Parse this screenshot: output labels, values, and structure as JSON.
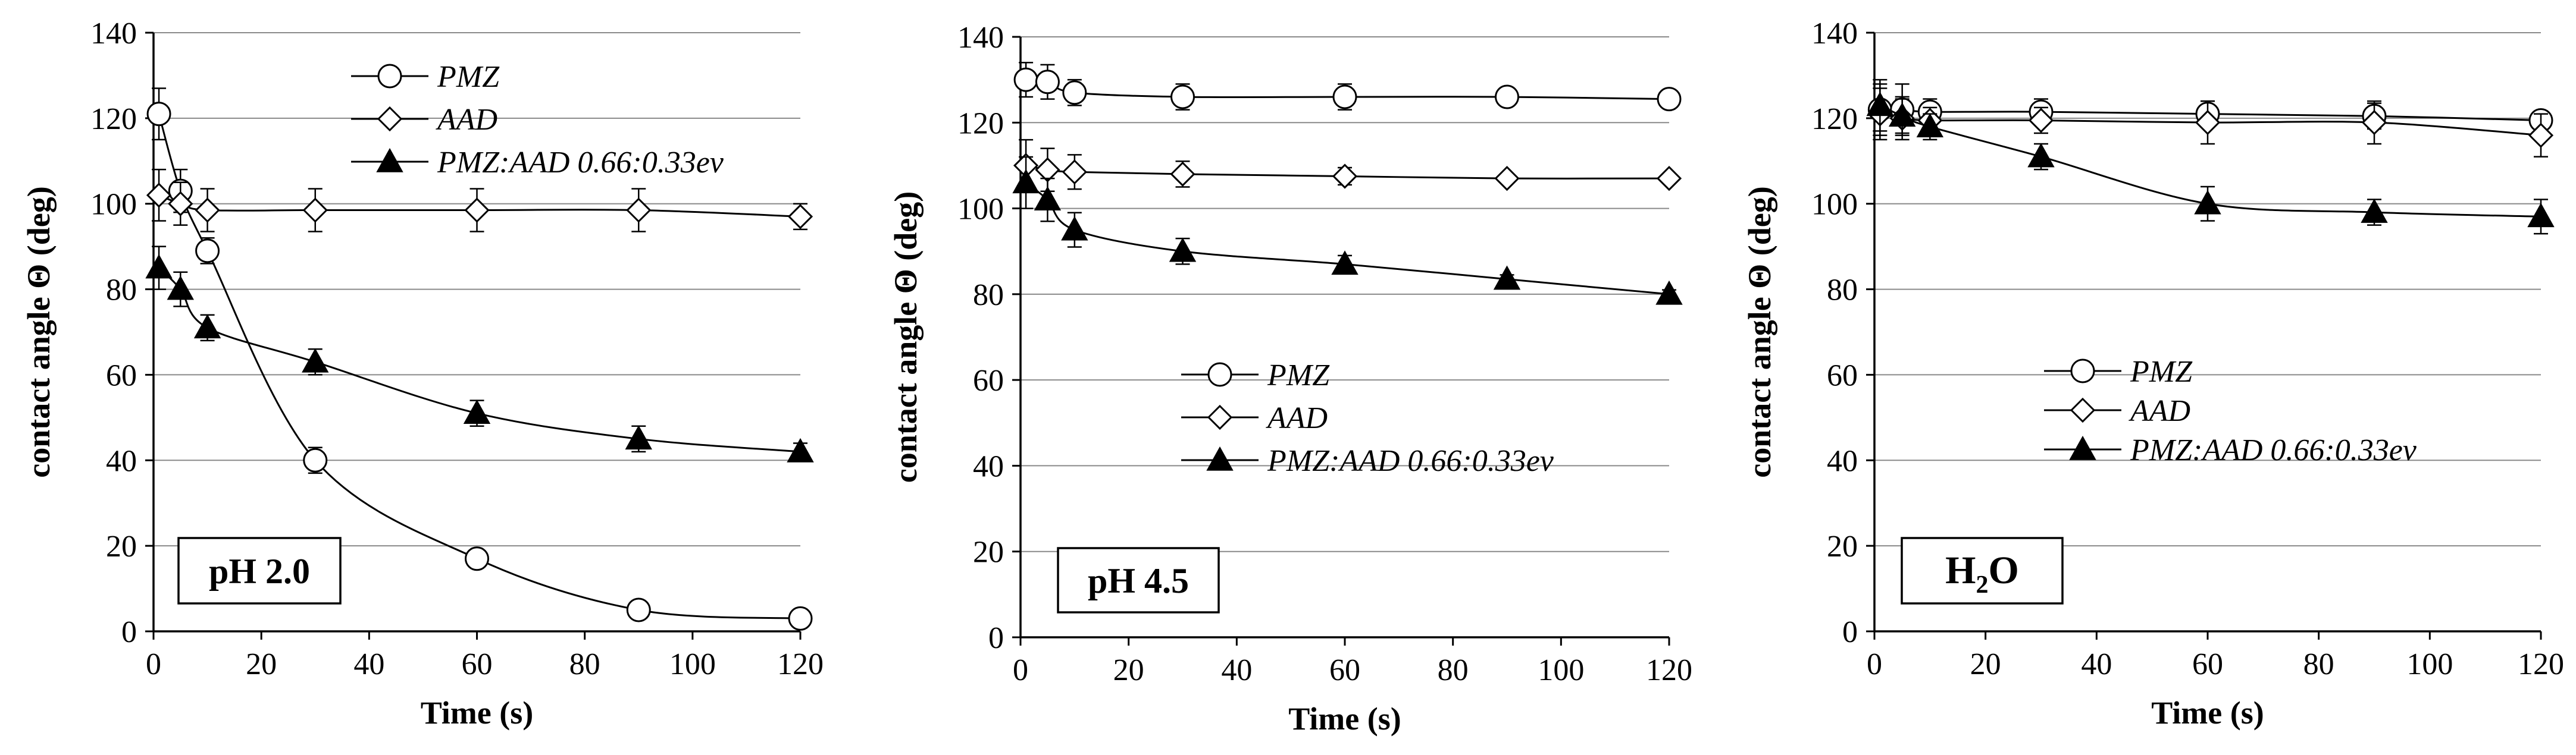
{
  "chart_data": [
    {
      "type": "line",
      "label": "pH 2.0",
      "xlabel": "Time (s)",
      "ylabel": "contact angle Θ (deg)",
      "xlim": [
        0,
        120
      ],
      "ylim": [
        0,
        140
      ],
      "xticks": [
        "0",
        "20",
        "40",
        "60",
        "80",
        "100",
        "120"
      ],
      "yticks": [
        "0",
        "20",
        "40",
        "60",
        "80",
        "100",
        "120",
        "140"
      ],
      "series": [
        {
          "name": "PMZ",
          "marker": "circle",
          "x": [
            1,
            5,
            10,
            30,
            60,
            90,
            120
          ],
          "y": [
            121,
            103,
            89,
            40,
            17,
            5,
            3
          ],
          "err": [
            6,
            5,
            3,
            3,
            2,
            1,
            1
          ]
        },
        {
          "name": "AAD",
          "marker": "diamond",
          "x": [
            1,
            5,
            10,
            30,
            60,
            90,
            120
          ],
          "y": [
            102,
            100,
            98.5,
            98.5,
            98.5,
            98.5,
            97
          ],
          "err": [
            6,
            5,
            5,
            5,
            5,
            5,
            3
          ]
        },
        {
          "name": "PMZ:AAD 0.66:0.33ev",
          "marker": "triangle",
          "x": [
            1,
            5,
            10,
            30,
            60,
            90,
            120
          ],
          "y": [
            85,
            80,
            71,
            63,
            51,
            45,
            42
          ],
          "err": [
            5,
            4,
            3,
            3,
            3,
            3,
            2
          ]
        }
      ]
    },
    {
      "type": "line",
      "label": "pH 4.5",
      "xlabel": "Time (s)",
      "ylabel": "contact angle Θ (deg)",
      "xlim": [
        0,
        120
      ],
      "ylim": [
        0,
        140
      ],
      "xticks": [
        "0",
        "20",
        "40",
        "60",
        "80",
        "100",
        "120"
      ],
      "yticks": [
        "0",
        "20",
        "40",
        "60",
        "80",
        "100",
        "120",
        "140"
      ],
      "series": [
        {
          "name": "PMZ",
          "marker": "circle",
          "x": [
            1,
            5,
            10,
            30,
            60,
            90,
            120
          ],
          "y": [
            130,
            129.5,
            127,
            126,
            126,
            126,
            125.5
          ],
          "err": [
            4,
            4,
            3,
            3,
            3,
            2,
            1
          ]
        },
        {
          "name": "AAD",
          "marker": "diamond",
          "x": [
            1,
            5,
            10,
            30,
            60,
            90,
            120
          ],
          "y": [
            110,
            109,
            108.5,
            108,
            107.5,
            107,
            107
          ],
          "err": [
            6,
            5,
            4,
            3,
            2,
            1,
            1
          ]
        },
        {
          "name": "PMZ:AAD 0.66:0.33ev",
          "marker": "triangle",
          "x": [
            1,
            5,
            10,
            30,
            60,
            90,
            120
          ],
          "y": [
            106,
            102,
            95,
            90,
            87,
            83.5,
            80
          ],
          "err": [
            6,
            5,
            4,
            3,
            2,
            1,
            1
          ]
        }
      ]
    },
    {
      "type": "line",
      "label": "H₂O",
      "label_main": "H",
      "label_sub": "2",
      "label_tail": "O",
      "xlabel": "Time (s)",
      "ylabel": "contact angle Θ (deg)",
      "xlim": [
        0,
        120
      ],
      "ylim": [
        0,
        140
      ],
      "xticks": [
        "0",
        "20",
        "40",
        "60",
        "80",
        "100",
        "120"
      ],
      "yticks": [
        "0",
        "20",
        "40",
        "60",
        "80",
        "100",
        "120",
        "140"
      ],
      "series": [
        {
          "name": "PMZ",
          "marker": "circle",
          "x": [
            1,
            5,
            10,
            30,
            60,
            90,
            120
          ],
          "y": [
            122,
            122,
            121.5,
            121.5,
            121,
            120.5,
            119.5
          ],
          "err": [
            6,
            6,
            3,
            3,
            3,
            3,
            2
          ]
        },
        {
          "name": "AAD",
          "marker": "diamond",
          "x": [
            1,
            5,
            10,
            30,
            60,
            90,
            120
          ],
          "y": [
            121,
            120,
            119.5,
            119.5,
            119,
            119,
            116
          ],
          "err": [
            6,
            5,
            3,
            3,
            5,
            5,
            5
          ]
        },
        {
          "name": "PMZ:AAD 0.66:0.33ev",
          "marker": "triangle",
          "x": [
            1,
            5,
            10,
            30,
            60,
            90,
            120
          ],
          "y": [
            123,
            120.5,
            118,
            111,
            100,
            98,
            97
          ],
          "err": [
            6,
            4,
            3,
            3,
            4,
            3,
            4
          ]
        }
      ]
    }
  ]
}
